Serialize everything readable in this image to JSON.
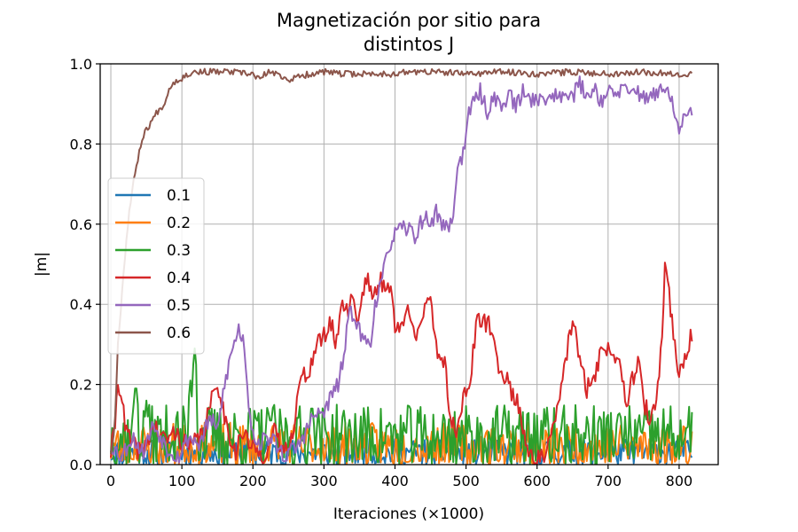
{
  "chart_data": {
    "type": "line",
    "title": [
      "Magnetización por sitio para",
      "distintos J"
    ],
    "xlabel": "Iteraciones (×1000)",
    "ylabel": "|m|",
    "xlim": [
      -15,
      855
    ],
    "ylim": [
      0,
      1
    ],
    "xticks": [
      0,
      100,
      200,
      300,
      400,
      500,
      600,
      700,
      800
    ],
    "yticks": [
      0.0,
      0.2,
      0.4,
      0.6,
      0.8,
      1.0
    ],
    "xtick_labels": [
      "0",
      "100",
      "200",
      "300",
      "400",
      "500",
      "600",
      "700",
      "800"
    ],
    "ytick_labels": [
      "0.0",
      "0.2",
      "0.4",
      "0.6",
      "0.8",
      "1.0"
    ],
    "grid": true,
    "legend_position": "center-left",
    "x_step": 2,
    "x_end": 818,
    "series": [
      {
        "name": "0.1",
        "color": "#1f77b4",
        "kind": "noise",
        "level": 0.03,
        "amp": 0.035,
        "seed": 11
      },
      {
        "name": "0.2",
        "color": "#ff7f0e",
        "kind": "noise",
        "level": 0.045,
        "amp": 0.06,
        "seed": 23
      },
      {
        "name": "0.3",
        "color": "#2ca02c",
        "kind": "noise",
        "level": 0.07,
        "amp": 0.08,
        "seed": 37,
        "peaks": [
          [
            118,
            0.29
          ],
          [
            112,
            0.21
          ],
          [
            35,
            0.21
          ],
          [
            50,
            0.16
          ],
          [
            225,
            0.13
          ],
          [
            283,
            0.16
          ]
        ]
      },
      {
        "name": "0.4",
        "color": "#d62728",
        "kind": "trace",
        "points": [
          [
            0,
            0.03
          ],
          [
            5,
            0.08
          ],
          [
            10,
            0.21
          ],
          [
            15,
            0.18
          ],
          [
            20,
            0.09
          ],
          [
            30,
            0.05
          ],
          [
            45,
            0.03
          ],
          [
            60,
            0.1
          ],
          [
            75,
            0.06
          ],
          [
            90,
            0.08
          ],
          [
            110,
            0.04
          ],
          [
            130,
            0.08
          ],
          [
            150,
            0.21
          ],
          [
            160,
            0.12
          ],
          [
            175,
            0.03
          ],
          [
            185,
            0.08
          ],
          [
            200,
            0.04
          ],
          [
            215,
            0.02
          ],
          [
            230,
            0.08
          ],
          [
            245,
            0.03
          ],
          [
            258,
            0.1
          ],
          [
            265,
            0.2
          ],
          [
            280,
            0.24
          ],
          [
            290,
            0.3
          ],
          [
            300,
            0.32
          ],
          [
            310,
            0.35
          ],
          [
            318,
            0.3
          ],
          [
            325,
            0.42
          ],
          [
            333,
            0.38
          ],
          [
            340,
            0.43
          ],
          [
            348,
            0.35
          ],
          [
            355,
            0.44
          ],
          [
            362,
            0.47
          ],
          [
            370,
            0.41
          ],
          [
            380,
            0.46
          ],
          [
            385,
            0.44
          ],
          [
            390,
            0.46
          ],
          [
            395,
            0.44
          ],
          [
            400,
            0.33
          ],
          [
            410,
            0.35
          ],
          [
            420,
            0.39
          ],
          [
            430,
            0.33
          ],
          [
            440,
            0.37
          ],
          [
            450,
            0.41
          ],
          [
            460,
            0.28
          ],
          [
            470,
            0.26
          ],
          [
            476,
            0.14
          ],
          [
            485,
            0.08
          ],
          [
            495,
            0.16
          ],
          [
            505,
            0.2
          ],
          [
            515,
            0.35
          ],
          [
            525,
            0.36
          ],
          [
            535,
            0.34
          ],
          [
            545,
            0.25
          ],
          [
            555,
            0.22
          ],
          [
            565,
            0.18
          ],
          [
            575,
            0.14
          ],
          [
            585,
            0.05
          ],
          [
            595,
            0.02
          ],
          [
            605,
            0.01
          ],
          [
            615,
            0.04
          ],
          [
            625,
            0.1
          ],
          [
            635,
            0.2
          ],
          [
            645,
            0.32
          ],
          [
            652,
            0.36
          ],
          [
            660,
            0.25
          ],
          [
            670,
            0.19
          ],
          [
            680,
            0.22
          ],
          [
            690,
            0.28
          ],
          [
            700,
            0.29
          ],
          [
            710,
            0.27
          ],
          [
            717,
            0.28
          ],
          [
            725,
            0.15
          ],
          [
            735,
            0.22
          ],
          [
            743,
            0.25
          ],
          [
            750,
            0.16
          ],
          [
            760,
            0.1
          ],
          [
            768,
            0.16
          ],
          [
            775,
            0.29
          ],
          [
            780,
            0.5
          ],
          [
            785,
            0.45
          ],
          [
            790,
            0.35
          ],
          [
            800,
            0.23
          ],
          [
            810,
            0.27
          ],
          [
            818,
            0.33
          ]
        ],
        "noise": 0.025,
        "seed": 41
      },
      {
        "name": "0.5",
        "color": "#9467bd",
        "kind": "trace",
        "points": [
          [
            0,
            0.05
          ],
          [
            15,
            0.02
          ],
          [
            30,
            0.07
          ],
          [
            45,
            0.03
          ],
          [
            60,
            0.1
          ],
          [
            80,
            0.04
          ],
          [
            95,
            0.02
          ],
          [
            110,
            0.07
          ],
          [
            125,
            0.05
          ],
          [
            140,
            0.12
          ],
          [
            150,
            0.08
          ],
          [
            160,
            0.2
          ],
          [
            170,
            0.28
          ],
          [
            180,
            0.34
          ],
          [
            188,
            0.3
          ],
          [
            195,
            0.13
          ],
          [
            205,
            0.05
          ],
          [
            225,
            0.07
          ],
          [
            245,
            0.02
          ],
          [
            265,
            0.05
          ],
          [
            285,
            0.12
          ],
          [
            300,
            0.13
          ],
          [
            310,
            0.17
          ],
          [
            320,
            0.2
          ],
          [
            328,
            0.27
          ],
          [
            335,
            0.37
          ],
          [
            343,
            0.38
          ],
          [
            352,
            0.32
          ],
          [
            365,
            0.3
          ],
          [
            372,
            0.4
          ],
          [
            382,
            0.46
          ],
          [
            392,
            0.55
          ],
          [
            402,
            0.58
          ],
          [
            418,
            0.59
          ],
          [
            430,
            0.57
          ],
          [
            440,
            0.62
          ],
          [
            450,
            0.6
          ],
          [
            458,
            0.63
          ],
          [
            470,
            0.59
          ],
          [
            480,
            0.6
          ],
          [
            487,
            0.73
          ],
          [
            495,
            0.77
          ],
          [
            502,
            0.86
          ],
          [
            510,
            0.9
          ],
          [
            520,
            0.93
          ],
          [
            530,
            0.88
          ],
          [
            540,
            0.92
          ],
          [
            550,
            0.89
          ],
          [
            560,
            0.93
          ],
          [
            570,
            0.89
          ],
          [
            580,
            0.93
          ],
          [
            590,
            0.91
          ],
          [
            600,
            0.92
          ],
          [
            610,
            0.9
          ],
          [
            620,
            0.93
          ],
          [
            630,
            0.91
          ],
          [
            640,
            0.94
          ],
          [
            650,
            0.92
          ],
          [
            660,
            0.95
          ],
          [
            670,
            0.92
          ],
          [
            680,
            0.94
          ],
          [
            690,
            0.91
          ],
          [
            700,
            0.93
          ],
          [
            710,
            0.92
          ],
          [
            720,
            0.94
          ],
          [
            730,
            0.92
          ],
          [
            740,
            0.94
          ],
          [
            750,
            0.91
          ],
          [
            760,
            0.93
          ],
          [
            770,
            0.92
          ],
          [
            780,
            0.94
          ],
          [
            788,
            0.91
          ],
          [
            795,
            0.88
          ],
          [
            800,
            0.82
          ],
          [
            805,
            0.86
          ],
          [
            812,
            0.87
          ]
        ],
        "noise": 0.022,
        "seed": 53
      },
      {
        "name": "0.6",
        "color": "#8c564b",
        "kind": "trace",
        "points": [
          [
            0,
            0.03
          ],
          [
            5,
            0.08
          ],
          [
            10,
            0.3
          ],
          [
            18,
            0.48
          ],
          [
            25,
            0.62
          ],
          [
            35,
            0.74
          ],
          [
            45,
            0.82
          ],
          [
            55,
            0.85
          ],
          [
            65,
            0.88
          ],
          [
            75,
            0.9
          ],
          [
            85,
            0.95
          ],
          [
            95,
            0.96
          ],
          [
            105,
            0.97
          ],
          [
            115,
            0.98
          ],
          [
            130,
            0.98
          ],
          [
            150,
            0.98
          ],
          [
            170,
            0.98
          ],
          [
            190,
            0.975
          ],
          [
            200,
            0.975
          ],
          [
            210,
            0.96
          ],
          [
            220,
            0.98
          ],
          [
            240,
            0.97
          ],
          [
            250,
            0.96
          ],
          [
            270,
            0.97
          ],
          [
            280,
            0.975
          ],
          [
            300,
            0.98
          ],
          [
            320,
            0.975
          ],
          [
            350,
            0.975
          ],
          [
            380,
            0.975
          ],
          [
            400,
            0.975
          ],
          [
            420,
            0.98
          ],
          [
            450,
            0.98
          ],
          [
            500,
            0.975
          ],
          [
            550,
            0.98
          ],
          [
            600,
            0.975
          ],
          [
            650,
            0.98
          ],
          [
            700,
            0.975
          ],
          [
            750,
            0.98
          ],
          [
            800,
            0.975
          ],
          [
            818,
            0.975
          ]
        ],
        "noise": 0.008,
        "seed": 67
      }
    ]
  }
}
